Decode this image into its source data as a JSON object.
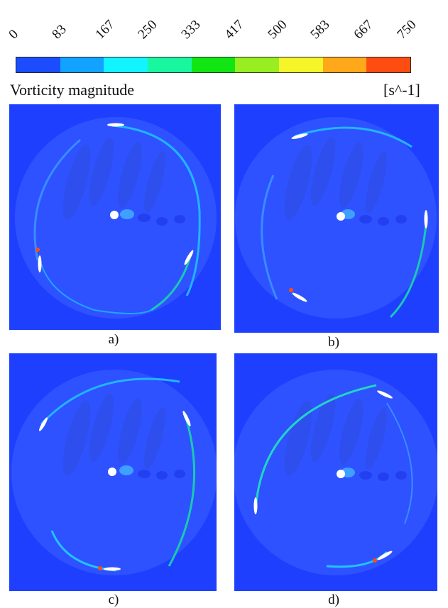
{
  "legend": {
    "title": "Vorticity magnitude",
    "unit": "[s^-1]",
    "ticks": [
      "0",
      "83",
      "167",
      "250",
      "333",
      "417",
      "500",
      "583",
      "667",
      "750"
    ],
    "colors": [
      "#1b4dff",
      "#11a3ff",
      "#12f4ff",
      "#18f7a0",
      "#11e612",
      "#99ee22",
      "#f5f52a",
      "#ffa81a",
      "#ff4d12"
    ]
  },
  "panels": [
    {
      "label": "a)"
    },
    {
      "label": "b)"
    },
    {
      "label": "c)"
    },
    {
      "label": "d)"
    }
  ]
}
